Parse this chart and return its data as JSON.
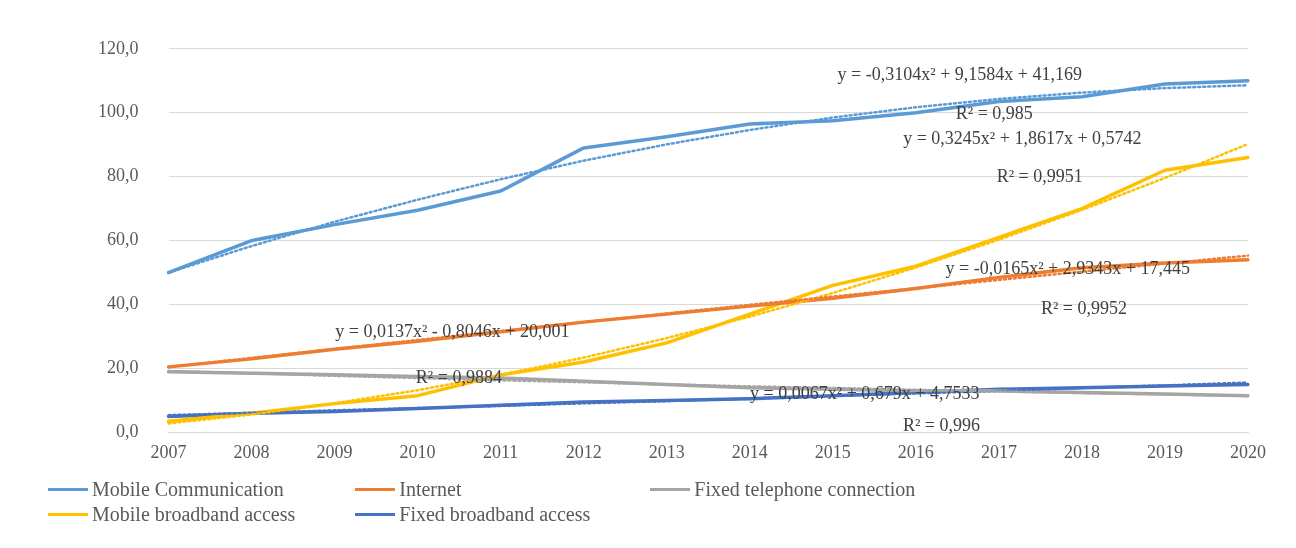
{
  "chart_data": {
    "type": "line",
    "categories": [
      "2007",
      "2008",
      "2009",
      "2010",
      "2011",
      "2012",
      "2013",
      "2014",
      "2015",
      "2016",
      "2017",
      "2018",
      "2019",
      "2020"
    ],
    "ylim": [
      0,
      120
    ],
    "yticks": [
      {
        "value": 0,
        "label": "0,0"
      },
      {
        "value": 20,
        "label": "20,0"
      },
      {
        "value": 40,
        "label": "40,0"
      },
      {
        "value": 60,
        "label": "60,0"
      },
      {
        "value": 80,
        "label": "80,0"
      },
      {
        "value": 100,
        "label": "100,0"
      },
      {
        "value": 120,
        "label": "120,0"
      }
    ],
    "grid": "y",
    "legend": "bottom",
    "marker": "none",
    "line_style": "solid",
    "series": [
      {
        "name": "Mobile Communication",
        "color": "#5b9bd5",
        "values": [
          50,
          60,
          65,
          69.5,
          75.5,
          89,
          92.5,
          96.5,
          97.5,
          100,
          103.5,
          105,
          109,
          110
        ]
      },
      {
        "name": "Internet",
        "color": "#ed7d31",
        "values": [
          20.5,
          23,
          26,
          28.5,
          31.5,
          34.5,
          37,
          39.5,
          42,
          45,
          48.5,
          51.5,
          53,
          54
        ]
      },
      {
        "name": "Fixed telephone connection",
        "color": "#a5a5a5",
        "values": [
          19,
          18.5,
          18,
          17.5,
          17,
          16,
          15,
          14,
          13.5,
          13,
          13,
          12.5,
          12,
          11.5
        ]
      },
      {
        "name": "Mobile broadband access",
        "color": "#ffc000",
        "values": [
          3.5,
          6,
          9,
          11.5,
          18,
          22,
          28,
          37,
          46,
          52,
          61,
          70,
          82,
          86
        ]
      },
      {
        "name": "Fixed broadband access",
        "color": "#4472c4",
        "values": [
          5,
          6,
          6.5,
          7.5,
          8.5,
          9.5,
          10,
          10.5,
          11.5,
          12.5,
          13.5,
          14,
          14.5,
          15
        ]
      },
      {
        "type": "line",
        "line_style": "dotted",
        "color": "#5b9bd5",
        "values": [
          50,
          58.3,
          65.9,
          72.8,
          79.2,
          85,
          90.1,
          94.6,
          98.5,
          101.7,
          104.3,
          106.3,
          107.7,
          108.6
        ]
      },
      {
        "type": "line",
        "line_style": "dotted",
        "color": "#ed7d31",
        "values": [
          20.4,
          23.3,
          26.1,
          28.9,
          31.7,
          34.5,
          37.2,
          39.9,
          42.5,
          45.1,
          47.7,
          50.3,
          52.8,
          55.3
        ]
      },
      {
        "type": "line",
        "line_style": "dotted",
        "color": "#a5a5a5",
        "values": [
          19.2,
          18.5,
          17.7,
          17,
          16.3,
          15.7,
          15,
          14.4,
          13.9,
          13.3,
          12.8,
          12.3,
          11.9,
          11.4
        ]
      },
      {
        "type": "line",
        "line_style": "dotted",
        "color": "#ffc000",
        "values": [
          2.8,
          5.6,
          9.1,
          13.2,
          18,
          23.4,
          29.5,
          36.2,
          43.6,
          51.6,
          60.3,
          69.6,
          79.6,
          90.2
        ]
      },
      {
        "type": "line",
        "line_style": "dotted",
        "color": "#4472c4",
        "values": [
          5.4,
          6.1,
          6.9,
          7.6,
          8.3,
          9.1,
          9.8,
          10.6,
          11.4,
          12.2,
          13,
          13.9,
          14.7,
          15.6
        ]
      }
    ],
    "annotations": [
      "y = -0,3104x² + 9,1584x + 41,169",
      "R² = 0,985",
      "y = 0,3245x² + 1,8617x + 0,5742",
      "R² = 0,9951",
      "y = -0,0165x² + 2,9343x + 17,445",
      "R² = 0,9952",
      "y = 0,0137x² - 0,8046x + 20,001",
      "R² = 0,9884",
      "y = 0,0067x² + 0,679x + 4,7533",
      "R² = 0,996"
    ]
  }
}
